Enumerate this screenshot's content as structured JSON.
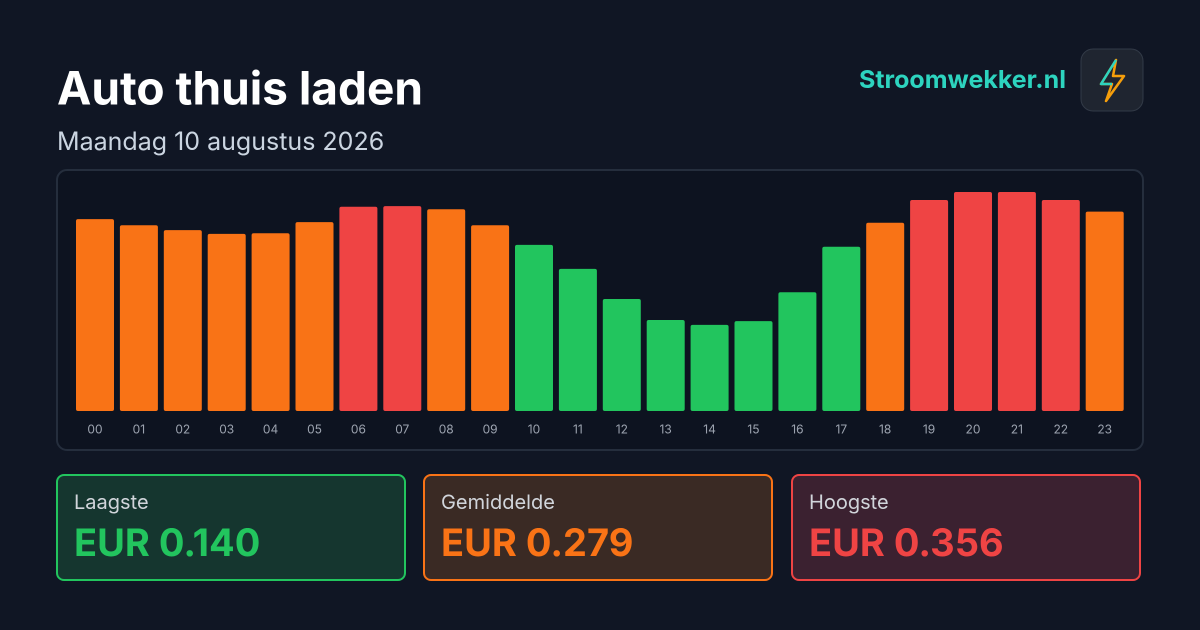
{
  "brand": "Stroomwekker.nl",
  "chart_data": {
    "type": "bar",
    "title": "Auto thuis laden",
    "subtitle": "Maandag 10 augustus 2026",
    "categories": [
      "00",
      "01",
      "02",
      "03",
      "04",
      "05",
      "06",
      "07",
      "08",
      "09",
      "10",
      "11",
      "12",
      "13",
      "14",
      "15",
      "16",
      "17",
      "18",
      "19",
      "20",
      "21",
      "22",
      "23"
    ],
    "values": [
      0.312,
      0.302,
      0.294,
      0.288,
      0.289,
      0.307,
      0.332,
      0.333,
      0.328,
      0.302,
      0.27,
      0.231,
      0.182,
      0.148,
      0.14,
      0.146,
      0.193,
      0.267,
      0.306,
      0.343,
      0.356,
      0.356,
      0.343,
      0.324
    ],
    "colors": [
      "#f97316",
      "#f97316",
      "#f97316",
      "#f97316",
      "#f97316",
      "#f97316",
      "#ef4444",
      "#ef4444",
      "#f97316",
      "#f97316",
      "#22c55e",
      "#22c55e",
      "#22c55e",
      "#22c55e",
      "#22c55e",
      "#22c55e",
      "#22c55e",
      "#22c55e",
      "#f97316",
      "#ef4444",
      "#ef4444",
      "#ef4444",
      "#ef4444",
      "#f97316"
    ]
  },
  "summary": [
    {
      "label": "Laagste",
      "value": "EUR 0.140"
    },
    {
      "label": "Gemiddelde",
      "value": "EUR 0.279"
    },
    {
      "label": "Hoogste",
      "value": "EUR 0.356"
    }
  ]
}
